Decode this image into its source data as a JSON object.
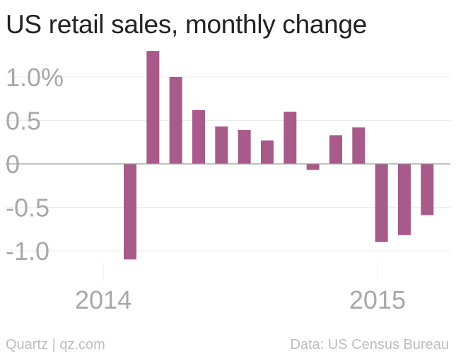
{
  "chart_data": {
    "type": "bar",
    "title": "US retail sales, monthly change",
    "xlabel": "",
    "ylabel": "",
    "ylim": [
      -1.2,
      1.4
    ],
    "y_ticks": [
      {
        "value": 1.0,
        "label": "1.0%"
      },
      {
        "value": 0.5,
        "label": "0.5"
      },
      {
        "value": 0,
        "label": "0"
      },
      {
        "value": -0.5,
        "label": "-0.5"
      },
      {
        "value": -1.0,
        "label": "-1.0"
      }
    ],
    "x_ticks": [
      {
        "month_index": 0,
        "label": "2014"
      },
      {
        "month_index": 12,
        "label": "2015"
      }
    ],
    "categories": [
      "2014-01",
      "2014-02",
      "2014-03",
      "2014-04",
      "2014-05",
      "2014-06",
      "2014-07",
      "2014-08",
      "2014-09",
      "2014-10",
      "2014-11",
      "2014-12",
      "2015-01",
      "2015-02",
      "2015-03"
    ],
    "values": [
      -1.1,
      1.3,
      1.0,
      0.62,
      0.43,
      0.39,
      0.27,
      0.6,
      -0.07,
      0.33,
      0.42,
      -0.9,
      -0.82,
      -0.59,
      0.0
    ],
    "bar_color": "#a85a8a"
  },
  "footer": {
    "source_left": "Quartz | qz.com",
    "source_right": "Data: US Census Bureau"
  }
}
